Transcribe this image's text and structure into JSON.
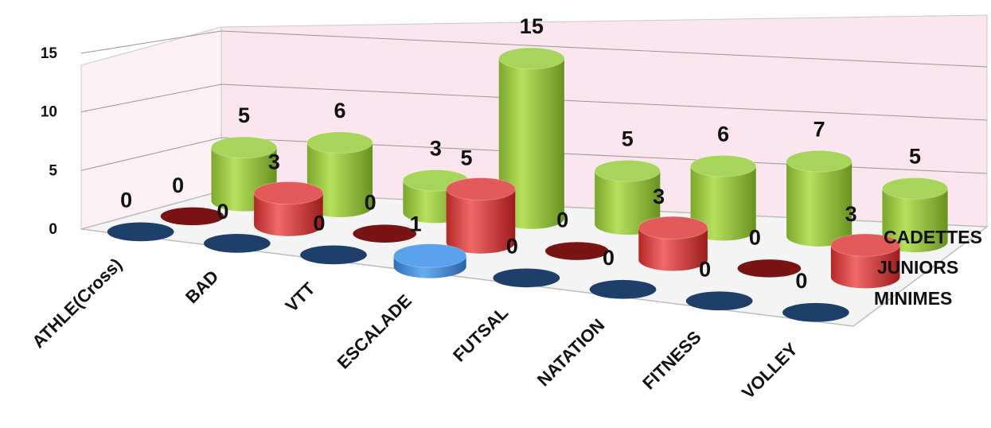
{
  "chart_data": {
    "type": "bar",
    "style": "3d-cylinder",
    "categories": [
      "ATHLE(Cross)",
      "BAD",
      "VTT",
      "ESCALADE",
      "FUTSAL",
      "NATATION",
      "FITNESS",
      "VOLLEY"
    ],
    "series": [
      {
        "name": "CADETTES",
        "values": [
          5,
          6,
          3,
          15,
          5,
          6,
          7,
          5
        ],
        "color": "#92c83e"
      },
      {
        "name": "JUNIORS",
        "values": [
          0,
          3,
          0,
          5,
          0,
          3,
          0,
          3
        ],
        "color": "#d93a3a"
      },
      {
        "name": "MINIMES",
        "values": [
          0,
          0,
          0,
          1,
          0,
          0,
          0,
          0
        ],
        "color": "#1f3f6b",
        "highlight_color": "#3a88d8"
      }
    ],
    "yticks": [
      0,
      5,
      10,
      15
    ],
    "ylim": [
      0,
      15
    ],
    "grid": true,
    "legend": "right",
    "colors": {
      "back_wall": "#fbe6ef",
      "floor": "#f4f4f4",
      "grid": "#999999",
      "text": "#111111"
    }
  }
}
